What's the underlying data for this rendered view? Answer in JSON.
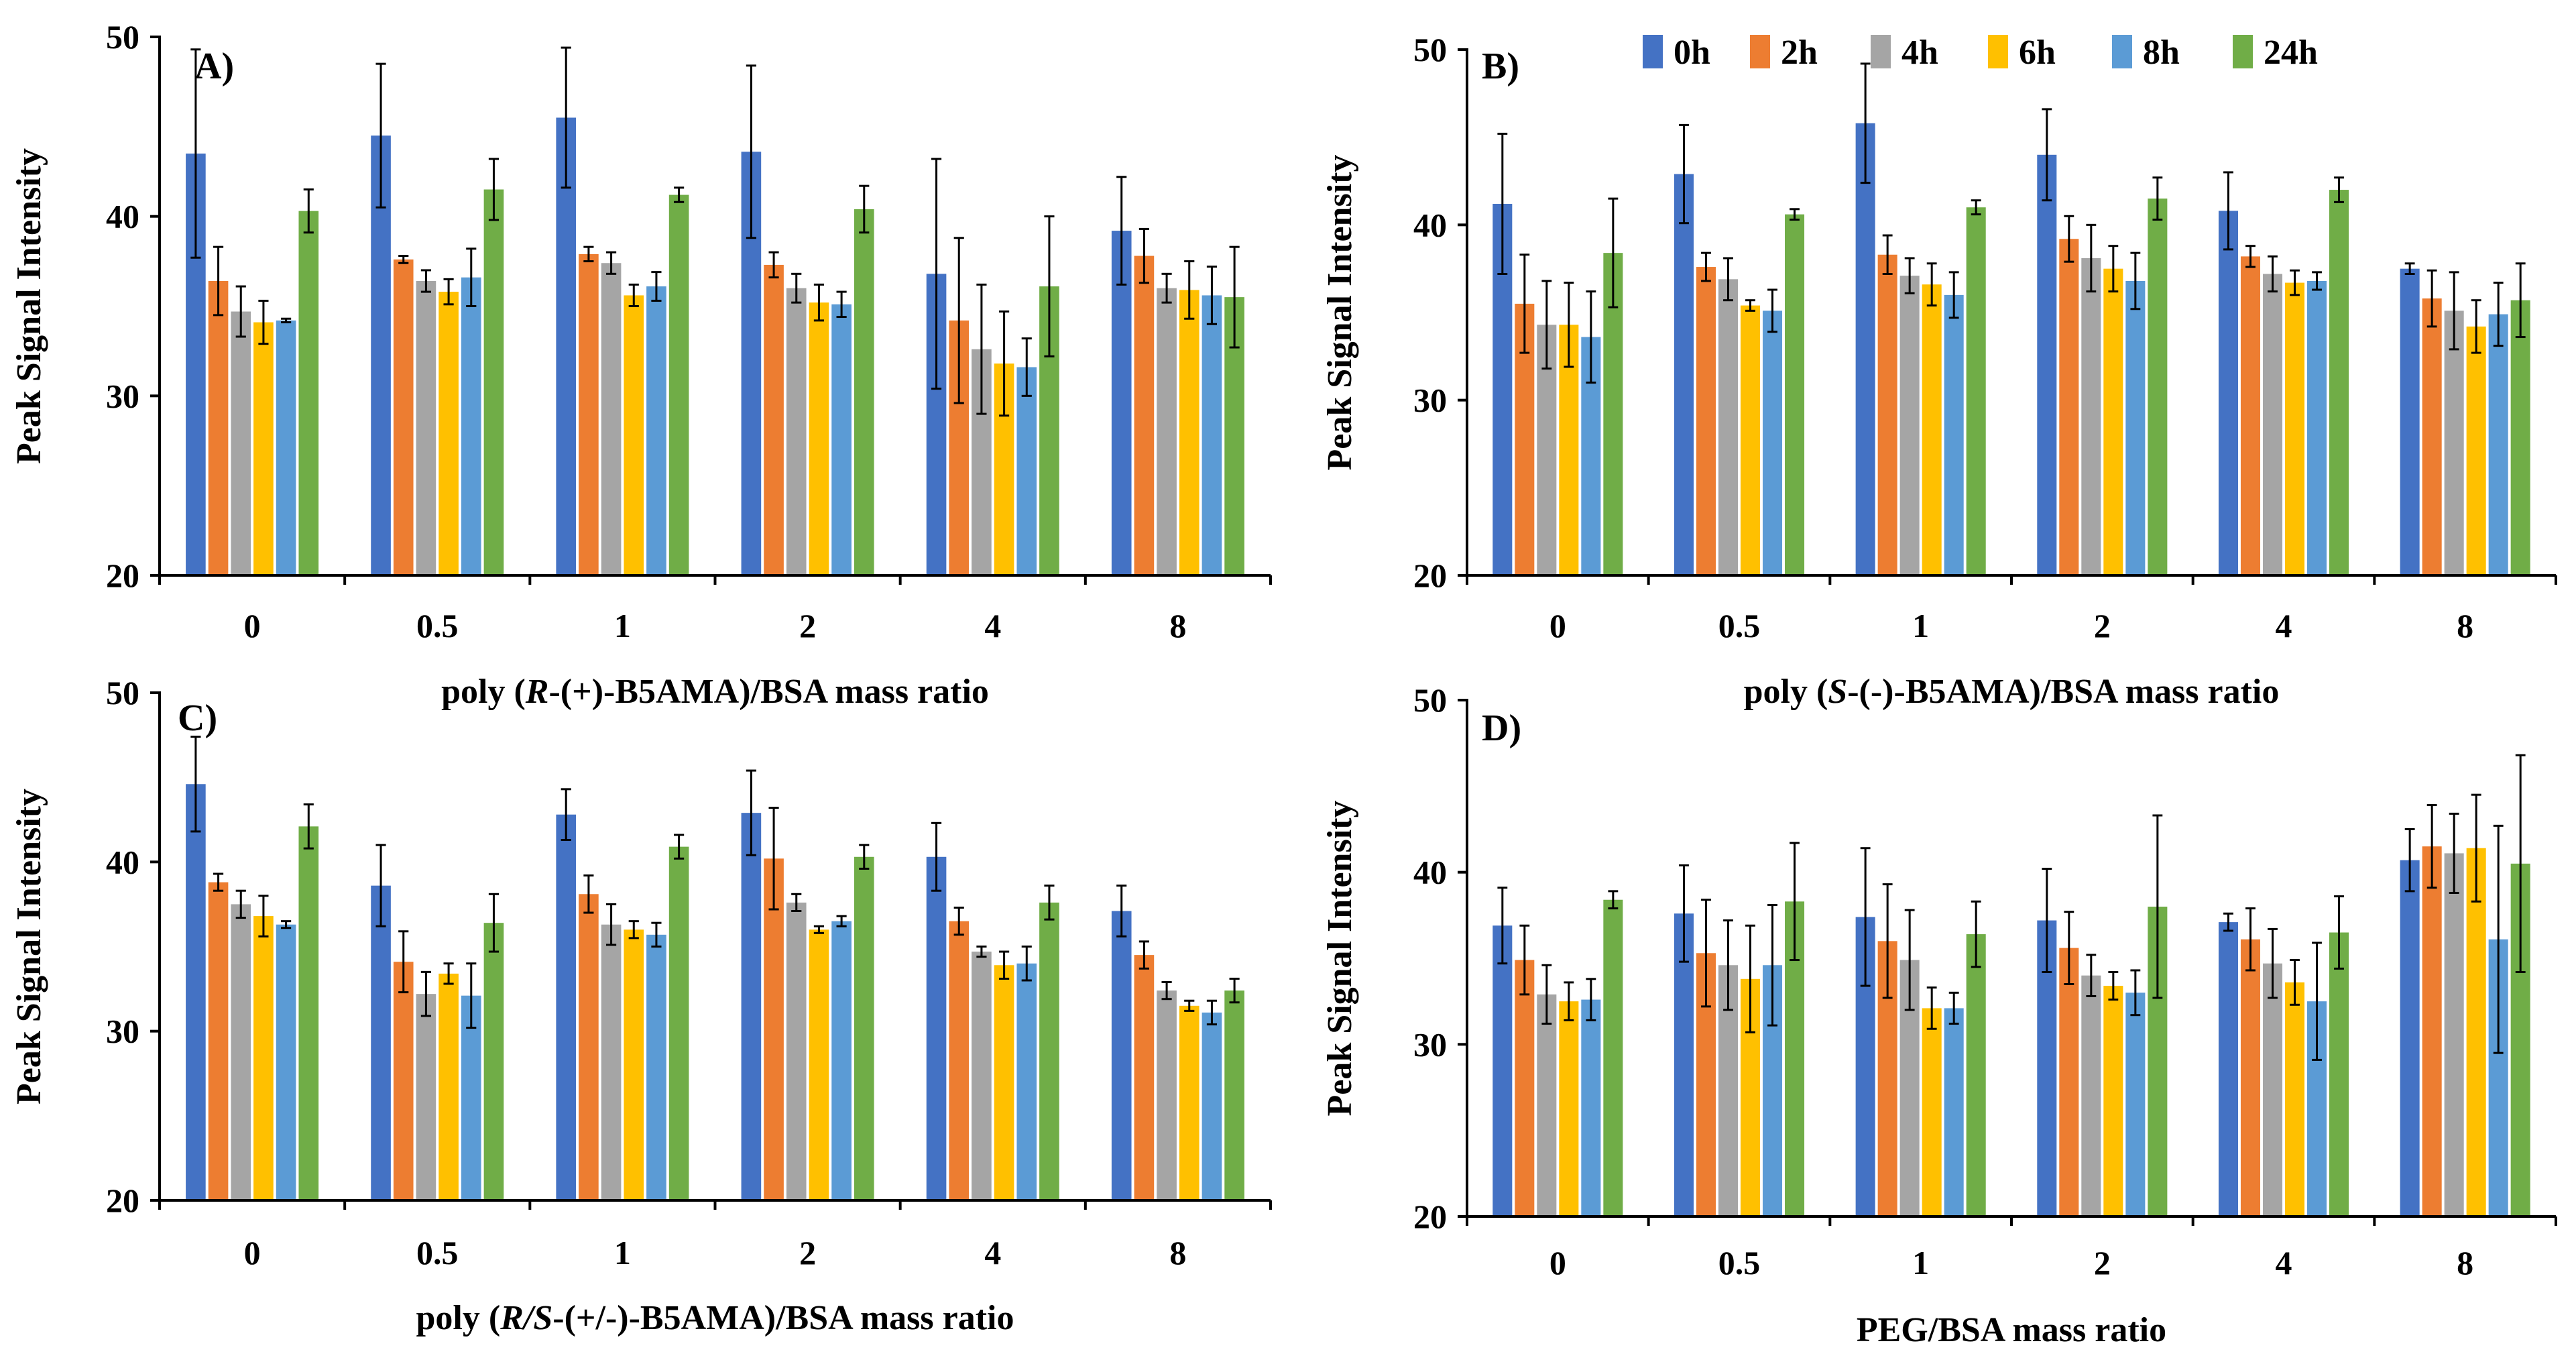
{
  "legend": {
    "entries": [
      {
        "name": "0h",
        "color": "#4472C4"
      },
      {
        "name": "2h",
        "color": "#ED7D31"
      },
      {
        "name": "4h",
        "color": "#A5A5A5"
      },
      {
        "name": "6h",
        "color": "#FFC000"
      },
      {
        "name": "8h",
        "color": "#5B9BD5"
      },
      {
        "name": "24h",
        "color": "#70AD47"
      }
    ],
    "placement": "top of panel B"
  },
  "chart_data": [
    {
      "type": "bar",
      "panel": "A)",
      "xlabel": "poly (R-(+)-B5AMA)/BSA mass ratio",
      "xlabel_parts": [
        {
          "text": "poly (",
          "italic": false
        },
        {
          "text": "R",
          "italic": true
        },
        {
          "text": "-(+)-B5AMA)/BSA mass ratio",
          "italic": false
        }
      ],
      "ylabel": "Peak Signal Intensity",
      "ylim": [
        20,
        50
      ],
      "yticks": [
        20,
        30,
        40,
        50
      ],
      "categories": [
        "0",
        "0.5",
        "1",
        "2",
        "4",
        "8"
      ],
      "series": [
        {
          "name": "0h",
          "values": [
            43.5,
            44.5,
            45.5,
            43.6,
            36.8,
            39.2
          ],
          "errors": [
            5.8,
            4.0,
            3.9,
            4.8,
            6.4,
            3.0
          ]
        },
        {
          "name": "2h",
          "values": [
            36.4,
            37.6,
            37.9,
            37.3,
            34.2,
            37.8
          ],
          "errors": [
            1.9,
            0.2,
            0.4,
            0.7,
            4.6,
            1.5
          ]
        },
        {
          "name": "4h",
          "values": [
            34.7,
            36.4,
            37.4,
            36.0,
            32.6,
            36.0
          ],
          "errors": [
            1.4,
            0.6,
            0.6,
            0.8,
            3.6,
            0.8
          ]
        },
        {
          "name": "6h",
          "values": [
            34.1,
            35.8,
            35.6,
            35.2,
            31.8,
            35.9
          ],
          "errors": [
            1.2,
            0.7,
            0.6,
            1.0,
            2.9,
            1.6
          ]
        },
        {
          "name": "8h",
          "values": [
            34.2,
            36.6,
            36.1,
            35.1,
            31.6,
            35.6
          ],
          "errors": [
            0.1,
            1.6,
            0.8,
            0.7,
            1.6,
            1.6
          ]
        },
        {
          "name": "24h",
          "values": [
            40.3,
            41.5,
            41.2,
            40.4,
            36.1,
            35.5
          ],
          "errors": [
            1.2,
            1.7,
            0.4,
            1.3,
            3.9,
            2.8
          ]
        }
      ]
    },
    {
      "type": "bar",
      "panel": "B)",
      "xlabel": "poly (S-(-)-B5AMA)/BSA mass ratio",
      "xlabel_parts": [
        {
          "text": "poly (",
          "italic": false
        },
        {
          "text": "S",
          "italic": true
        },
        {
          "text": "-(-)-B5AMA)/BSA mass ratio",
          "italic": false
        }
      ],
      "ylabel": "Peak Signal Intensity",
      "ylim": [
        20,
        50
      ],
      "yticks": [
        20,
        30,
        40,
        50
      ],
      "categories": [
        "0",
        "0.5",
        "1",
        "2",
        "4",
        "8"
      ],
      "series": [
        {
          "name": "0h",
          "values": [
            41.2,
            42.9,
            45.8,
            44.0,
            40.8,
            37.5
          ],
          "errors": [
            4.0,
            2.8,
            3.4,
            2.6,
            2.2,
            0.3
          ]
        },
        {
          "name": "2h",
          "values": [
            35.5,
            37.6,
            38.3,
            39.2,
            38.2,
            35.8
          ],
          "errors": [
            2.8,
            0.8,
            1.1,
            1.3,
            0.6,
            1.6
          ]
        },
        {
          "name": "4h",
          "values": [
            34.3,
            36.9,
            37.1,
            38.1,
            37.2,
            35.1
          ],
          "errors": [
            2.5,
            1.2,
            1.0,
            1.9,
            1.0,
            2.2
          ]
        },
        {
          "name": "6h",
          "values": [
            34.3,
            35.4,
            36.6,
            37.5,
            36.7,
            34.2
          ],
          "errors": [
            2.4,
            0.3,
            1.2,
            1.3,
            0.7,
            1.5
          ]
        },
        {
          "name": "8h",
          "values": [
            33.6,
            35.1,
            36.0,
            36.8,
            36.8,
            34.9
          ],
          "errors": [
            2.6,
            1.2,
            1.3,
            1.6,
            0.5,
            1.8
          ]
        },
        {
          "name": "24h",
          "values": [
            38.4,
            40.6,
            41.0,
            41.5,
            42.0,
            35.7
          ],
          "errors": [
            3.1,
            0.3,
            0.4,
            1.2,
            0.7,
            2.1
          ]
        }
      ]
    },
    {
      "type": "bar",
      "panel": "C)",
      "xlabel": "poly (R/S-(+/-)-B5AMA)/BSA mass ratio",
      "xlabel_parts": [
        {
          "text": "poly (",
          "italic": false
        },
        {
          "text": "R/S",
          "italic": true
        },
        {
          "text": "-(+/-)-B5AMA)/BSA mass ratio",
          "italic": false
        }
      ],
      "ylabel": "Peak Signal Intensity",
      "ylim": [
        20,
        50
      ],
      "yticks": [
        20,
        30,
        40,
        50
      ],
      "categories": [
        "0",
        "0.5",
        "1",
        "2",
        "4",
        "8"
      ],
      "series": [
        {
          "name": "0h",
          "values": [
            44.6,
            38.6,
            42.8,
            42.9,
            40.3,
            37.1
          ],
          "errors": [
            2.8,
            2.4,
            1.5,
            2.5,
            2.0,
            1.5
          ]
        },
        {
          "name": "2h",
          "values": [
            38.8,
            34.1,
            38.1,
            40.2,
            36.5,
            34.5
          ],
          "errors": [
            0.5,
            1.8,
            1.1,
            3.0,
            0.8,
            0.8
          ]
        },
        {
          "name": "4h",
          "values": [
            37.5,
            32.2,
            36.3,
            37.6,
            34.7,
            32.4
          ],
          "errors": [
            0.8,
            1.3,
            1.2,
            0.5,
            0.3,
            0.5
          ]
        },
        {
          "name": "6h",
          "values": [
            36.8,
            33.4,
            36.0,
            36.0,
            33.9,
            31.5
          ],
          "errors": [
            1.2,
            0.6,
            0.5,
            0.2,
            0.8,
            0.3
          ]
        },
        {
          "name": "8h",
          "values": [
            36.3,
            32.1,
            35.7,
            36.5,
            34.0,
            31.1
          ],
          "errors": [
            0.2,
            1.9,
            0.7,
            0.3,
            1.0,
            0.7
          ]
        },
        {
          "name": "24h",
          "values": [
            42.1,
            36.4,
            40.9,
            40.3,
            37.6,
            32.4
          ],
          "errors": [
            1.3,
            1.7,
            0.7,
            0.7,
            1.0,
            0.7
          ]
        }
      ]
    },
    {
      "type": "bar",
      "panel": "D)",
      "xlabel": "PEG/BSA mass ratio",
      "xlabel_parts": [
        {
          "text": "PEG/BSA mass ratio",
          "italic": false
        }
      ],
      "ylabel": "Peak Signal Intensity",
      "ylim": [
        20,
        50
      ],
      "yticks": [
        20,
        30,
        40,
        50
      ],
      "categories": [
        "0",
        "0.5",
        "1",
        "2",
        "4",
        "8"
      ],
      "series": [
        {
          "name": "0h",
          "values": [
            36.9,
            37.6,
            37.4,
            37.2,
            37.1,
            40.7
          ],
          "errors": [
            2.2,
            2.8,
            4.0,
            3.0,
            0.5,
            1.8
          ]
        },
        {
          "name": "2h",
          "values": [
            34.9,
            35.3,
            36.0,
            35.6,
            36.1,
            41.5
          ],
          "errors": [
            2.0,
            3.1,
            3.3,
            2.1,
            1.8,
            2.4
          ]
        },
        {
          "name": "4h",
          "values": [
            32.9,
            34.6,
            34.9,
            34.0,
            34.7,
            41.1
          ],
          "errors": [
            1.7,
            2.6,
            2.9,
            1.2,
            2.0,
            2.3
          ]
        },
        {
          "name": "6h",
          "values": [
            32.5,
            33.8,
            32.1,
            33.4,
            33.6,
            41.4
          ],
          "errors": [
            1.1,
            3.1,
            1.2,
            0.8,
            1.3,
            3.1
          ]
        },
        {
          "name": "8h",
          "values": [
            32.6,
            34.6,
            32.1,
            33.0,
            32.5,
            36.1
          ],
          "errors": [
            1.2,
            3.5,
            0.9,
            1.3,
            3.4,
            6.6
          ]
        },
        {
          "name": "24h",
          "values": [
            38.4,
            38.3,
            36.4,
            38.0,
            36.5,
            40.5
          ],
          "errors": [
            0.5,
            3.4,
            1.9,
            5.3,
            2.1,
            6.3
          ]
        }
      ]
    }
  ]
}
